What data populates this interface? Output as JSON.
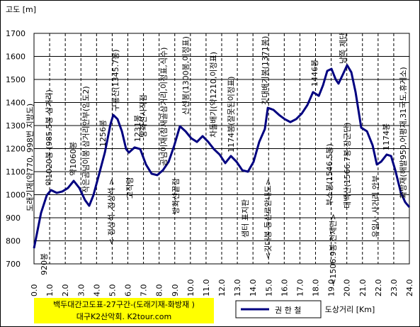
{
  "chart_data": {
    "type": "line",
    "title": "백두대간고도표-27구간-(도래기재-화방재 )",
    "subtitle": "대구K2산악회. K2tour.com",
    "y_label": "고도 [m]",
    "x_label": "도상거리 [Km]",
    "x": [
      0.0,
      0.45,
      0.82,
      1.09,
      1.45,
      1.81,
      2.17,
      2.54,
      2.9,
      3.26,
      3.53,
      3.8,
      4.17,
      4.53,
      4.89,
      5.07,
      5.34,
      5.62,
      5.89,
      6.07,
      6.43,
      6.79,
      7.16,
      7.52,
      7.88,
      8.24,
      8.61,
      8.97,
      9.33,
      9.69,
      10.05,
      10.42,
      10.78,
      11.14,
      11.5,
      11.87,
      12.23,
      12.59,
      12.95,
      13.32,
      13.68,
      14.04,
      14.4,
      14.76,
      14.95,
      15.31,
      15.67,
      16.03,
      16.39,
      16.76,
      17.12,
      17.48,
      17.84,
      18.21,
      18.48,
      18.75,
      19.02,
      19.29,
      19.47,
      19.75,
      20.02,
      20.29,
      20.56,
      20.92,
      21.29,
      21.65,
      21.92,
      22.19,
      22.55,
      22.83,
      23.1,
      23.46,
      23.73,
      24.0
    ],
    "series": [
      {
        "name": "권 한 철",
        "color": "#000080",
        "values": [
          768,
          921,
          998,
          1020,
          1008,
          1014,
          1029,
          1060,
          1029,
          977,
          952,
          998,
          1091,
          1183,
          1306,
          1346,
          1328,
          1275,
          1198,
          1183,
          1205,
          1198,
          1131,
          1091,
          1085,
          1106,
          1143,
          1214,
          1297,
          1275,
          1245,
          1229,
          1254,
          1229,
          1198,
          1174,
          1137,
          1168,
          1143,
          1106,
          1100,
          1143,
          1229,
          1285,
          1377,
          1368,
          1346,
          1328,
          1315,
          1328,
          1352,
          1389,
          1445,
          1429,
          1475,
          1537,
          1546,
          1500,
          1482,
          1522,
          1562,
          1531,
          1445,
          1291,
          1275,
          1214,
          1131,
          1143,
          1174,
          1168,
          1106,
          1008,
          968,
          946
        ]
      }
    ],
    "xlim": [
      0,
      24
    ],
    "ylim": [
      700,
      1700
    ],
    "xticks": [
      {
        "value": 0,
        "label": "0.0"
      },
      {
        "value": 1,
        "label": "1.0"
      },
      {
        "value": 2,
        "label": "2.0"
      },
      {
        "value": 3,
        "label": "3.0"
      },
      {
        "value": 4,
        "label": "4.0"
      },
      {
        "value": 5,
        "label": "5.0"
      },
      {
        "value": 6,
        "label": "6.0"
      },
      {
        "value": 7,
        "label": "7.0"
      },
      {
        "value": 8,
        "label": "8.0"
      },
      {
        "value": 9,
        "label": "9.0"
      },
      {
        "value": 10,
        "label": "10.0"
      },
      {
        "value": 11,
        "label": "11.0"
      },
      {
        "value": 12,
        "label": "12.0"
      },
      {
        "value": 13,
        "label": "13.0"
      },
      {
        "value": 14,
        "label": "14.0"
      },
      {
        "value": 15,
        "label": "15.0"
      },
      {
        "value": 16,
        "label": "16.0"
      },
      {
        "value": 17,
        "label": "17.0"
      },
      {
        "value": 18,
        "label": "18.0"
      },
      {
        "value": 19,
        "label": "19.0"
      },
      {
        "value": 20,
        "label": "20.0"
      },
      {
        "value": 21,
        "label": "21.0"
      },
      {
        "value": 22,
        "label": "22.0"
      },
      {
        "value": 23,
        "label": "23.0"
      },
      {
        "value": 24,
        "label": "24.0"
      }
    ],
    "yticks": [
      700,
      800,
      900,
      1000,
      1100,
      1200,
      1300,
      1400,
      1500,
      1600,
      1700
    ],
    "grid": true,
    "annotations": [
      "도래기재(약770, 998번 지방도)",
      "약1020봉 (985.5봉 삼거리)",
      "920봉",
      "약1060봉",
      "작은곰넘이봉 삼거리안부(임도2)",
      "1256봉",
      "< 정상석 ,정상석 >",
      "구룡산(1345.7봉)",
      "방화선시작점",
      "1231봉",
      "고직령",
      "곰넘이재(참새골삼거리,이정표,식수)",
      "방화선끝점",
      "신선봉(1300봉,이정표)",
      "차돌배기(약1210,이정표)",
      "1174봉(잘못된이정표)",
      "샘터 표지판",
      "깃대배기봉(1371봉)",
      "<깃대봉 등산로안내도>",
      "1446봉",
      "부소봉(1546.5봉)",
      "<1506.9봉,천제단>",
      "남쪽 제단",
      "태백산(1566.7봉,장군단)",
      "유일사 사거리 안부",
      "1174봉",
      "화방재(해발950,어평재,31국도,휴게소)"
    ]
  }
}
